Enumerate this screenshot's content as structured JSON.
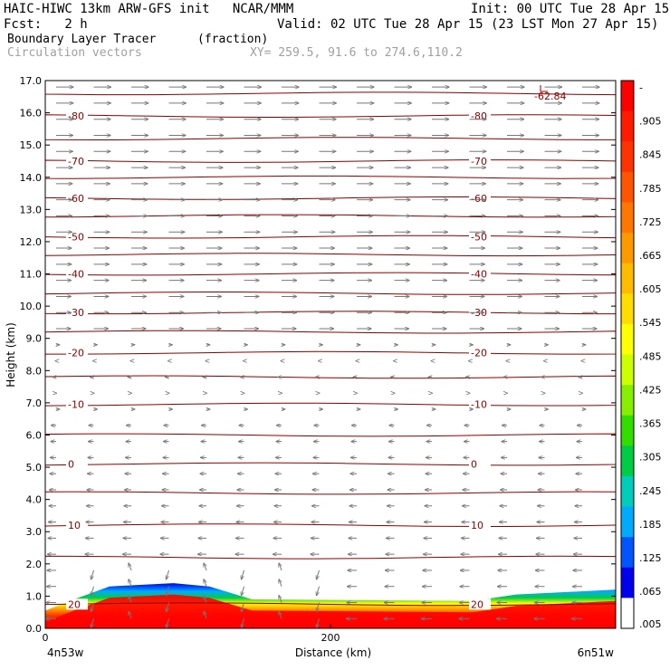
{
  "header": {
    "line1_left": "HAIC-HIWC 13km ARW-GFS init   NCAR/MMM",
    "line1_right": "Init: 00 UTC Tue 28 Apr 15",
    "line2_left": "Fcst:   2 h",
    "line2_right": "Valid: 02 UTC Tue 28 Apr 15 (23 LST Mon 27 Apr 15)",
    "field_name": "Boundary Layer Tracer",
    "field_units": "(fraction)",
    "vectors_label": "Circulation vectors",
    "xy_label": "XY= 259.5, 91.6 to 274.6,110.2"
  },
  "axes": {
    "ylabel": "Height (km)",
    "xlabel": "Distance (km)",
    "left_endpoint": "4n53w",
    "right_endpoint": "6n51w"
  },
  "colorbar": {
    "labels": [
      "-",
      ".905",
      ".845",
      ".785",
      ".725",
      ".665",
      ".605",
      ".545",
      ".485",
      ".425",
      ".365",
      ".305",
      ".245",
      ".185",
      ".125",
      ".065",
      ".005"
    ],
    "colors": [
      "#ff0000",
      "#ff1a00",
      "#ff3300",
      "#ff5500",
      "#ff7700",
      "#ff9900",
      "#ffbb00",
      "#ffdd00",
      "#ffff00",
      "#ccff00",
      "#88ee00",
      "#33dd00",
      "#00cc44",
      "#00ccbb",
      "#00aaff",
      "#0055ff",
      "#0000ee",
      "#ffffff"
    ]
  },
  "chart_data": {
    "type": "heatmap",
    "title": "Boundary Layer Tracer",
    "xlabel": "Distance (km)",
    "ylabel": "Height (km)",
    "xlim": [
      0,
      400
    ],
    "ylim": [
      0,
      17
    ],
    "x_ticks": [
      0,
      200
    ],
    "y_ticks": [
      "0.0",
      "1.0",
      "2.0",
      "3.0",
      "4.0",
      "5.0",
      "6.0",
      "7.0",
      "8.0",
      "9.0",
      "10.0",
      "11.0",
      "12.0",
      "13.0",
      "14.0",
      "15.0",
      "16.0",
      "17.0"
    ],
    "max_marker": "-62.84",
    "temperature_contours": [
      {
        "value": "-80",
        "height_km": 15.9
      },
      {
        "value": "-70",
        "height_km": 14.5
      },
      {
        "value": "-60",
        "height_km": 13.35
      },
      {
        "value": "-50",
        "height_km": 12.15
      },
      {
        "value": "-40",
        "height_km": 11.0
      },
      {
        "value": "-30",
        "height_km": 9.8
      },
      {
        "value": "-20",
        "height_km": 8.55
      },
      {
        "value": "-10",
        "height_km": 6.95
      },
      {
        "value": "0",
        "height_km": 5.1
      },
      {
        "value": "10",
        "height_km": 3.2
      },
      {
        "value": "20",
        "height_km": 0.75
      }
    ],
    "unlabeled_contour_heights_km": [
      16.6,
      15.2,
      14.0,
      12.8,
      11.6,
      10.4,
      9.2,
      7.8,
      6.0,
      4.2,
      2.2
    ],
    "tracer_layer": {
      "value_range": [
        0.005,
        0.965
      ],
      "top_height_km": [
        [
          0,
          0.55
        ],
        [
          20,
          0.9
        ],
        [
          45,
          1.3
        ],
        [
          90,
          1.4
        ],
        [
          115,
          1.3
        ],
        [
          145,
          0.9
        ],
        [
          300,
          0.85
        ],
        [
          330,
          1.05
        ],
        [
          400,
          1.2
        ]
      ]
    },
    "wind_regime": [
      {
        "from_km": 9.0,
        "to_km": 17.0,
        "direction": "eastward",
        "speed": "strong"
      },
      {
        "from_km": 6.5,
        "to_km": 9.0,
        "direction": "variable",
        "speed": "weak"
      },
      {
        "from_km": 0.0,
        "to_km": 6.5,
        "direction": "westward",
        "speed": "moderate"
      }
    ]
  }
}
